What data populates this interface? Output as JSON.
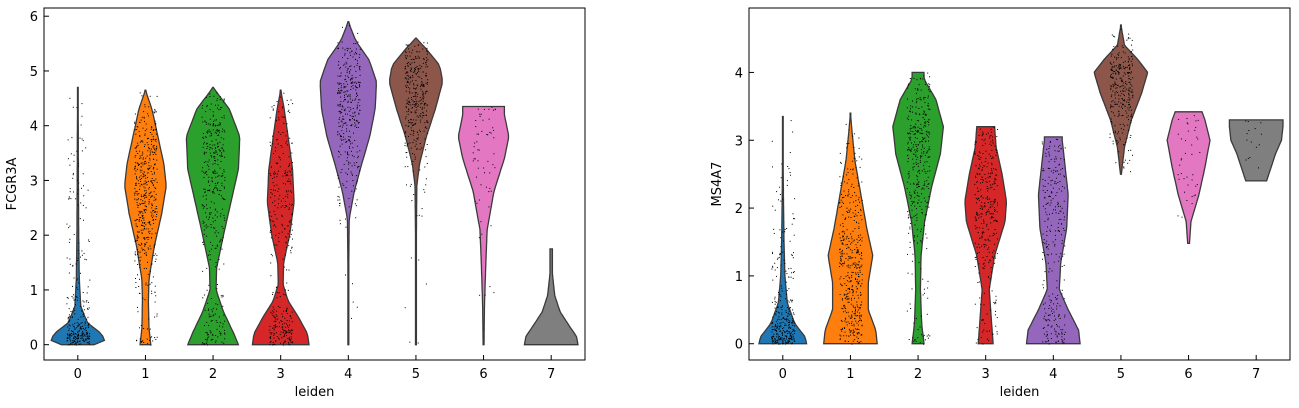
{
  "chart_data": [
    {
      "type": "violin",
      "gene": "FCGR3A",
      "xlabel": "leiden",
      "ylabel": "FCGR3A",
      "categories": [
        "0",
        "1",
        "2",
        "3",
        "4",
        "5",
        "6",
        "7"
      ],
      "colors": [
        "#1f77b4",
        "#ff7f0e",
        "#2ca02c",
        "#d62728",
        "#9467bd",
        "#8c564b",
        "#e377c2",
        "#7f7f7f"
      ],
      "ylim": [
        -0.28,
        6.15
      ],
      "yticks": [
        0,
        1,
        2,
        3,
        4,
        5,
        6
      ],
      "grid": false,
      "series": [
        {
          "cluster": "0",
          "min": 0,
          "max": 4.7,
          "width_profile": [
            [
              0,
              0.55
            ],
            [
              0.08,
              0.9
            ],
            [
              0.2,
              0.8
            ],
            [
              0.4,
              0.32
            ],
            [
              0.7,
              0.1
            ],
            [
              1.2,
              0.05
            ],
            [
              2,
              0.03
            ],
            [
              3,
              0.02
            ],
            [
              4,
              0.015
            ],
            [
              4.7,
              0
            ]
          ],
          "n_points": 300
        },
        {
          "cluster": "1",
          "min": 0,
          "max": 4.65,
          "width_profile": [
            [
              0,
              0.18
            ],
            [
              0.3,
              0.12
            ],
            [
              0.8,
              0.1
            ],
            [
              1.2,
              0.12
            ],
            [
              1.8,
              0.3
            ],
            [
              2.4,
              0.55
            ],
            [
              2.9,
              0.7
            ],
            [
              3.3,
              0.62
            ],
            [
              3.8,
              0.42
            ],
            [
              4.3,
              0.22
            ],
            [
              4.65,
              0
            ]
          ],
          "n_points": 500
        },
        {
          "cluster": "2",
          "min": 0,
          "max": 4.7,
          "width_profile": [
            [
              0,
              0.85
            ],
            [
              0.2,
              0.7
            ],
            [
              0.6,
              0.35
            ],
            [
              1.0,
              0.1
            ],
            [
              1.4,
              0.12
            ],
            [
              2.0,
              0.35
            ],
            [
              2.6,
              0.6
            ],
            [
              3.2,
              0.85
            ],
            [
              3.8,
              0.9
            ],
            [
              4.3,
              0.55
            ],
            [
              4.7,
              0
            ]
          ],
          "n_points": 400
        },
        {
          "cluster": "3",
          "min": 0,
          "max": 4.65,
          "width_profile": [
            [
              0,
              0.95
            ],
            [
              0.2,
              0.9
            ],
            [
              0.5,
              0.6
            ],
            [
              0.8,
              0.25
            ],
            [
              1.1,
              0.08
            ],
            [
              1.5,
              0.1
            ],
            [
              2.0,
              0.3
            ],
            [
              2.6,
              0.45
            ],
            [
              3.2,
              0.4
            ],
            [
              3.8,
              0.25
            ],
            [
              4.3,
              0.12
            ],
            [
              4.65,
              0
            ]
          ],
          "n_points": 350
        },
        {
          "cluster": "4",
          "min": 0,
          "max": 5.9,
          "width_profile": [
            [
              0,
              0.015
            ],
            [
              1.5,
              0.015
            ],
            [
              2.3,
              0.03
            ],
            [
              2.8,
              0.2
            ],
            [
              3.3,
              0.45
            ],
            [
              3.8,
              0.72
            ],
            [
              4.3,
              0.9
            ],
            [
              4.8,
              0.95
            ],
            [
              5.2,
              0.7
            ],
            [
              5.55,
              0.25
            ],
            [
              5.9,
              0
            ]
          ],
          "n_points": 350
        },
        {
          "cluster": "5",
          "min": 0,
          "max": 5.6,
          "width_profile": [
            [
              0,
              0.015
            ],
            [
              2.0,
              0.015
            ],
            [
              2.9,
              0.03
            ],
            [
              3.3,
              0.12
            ],
            [
              3.8,
              0.35
            ],
            [
              4.3,
              0.65
            ],
            [
              4.8,
              0.9
            ],
            [
              5.1,
              0.8
            ],
            [
              5.4,
              0.35
            ],
            [
              5.6,
              0
            ]
          ],
          "n_points": 350
        },
        {
          "cluster": "6",
          "min": 0,
          "max": 4.35,
          "width_profile": [
            [
              0,
              0.015
            ],
            [
              0.7,
              0.03
            ],
            [
              1.4,
              0.07
            ],
            [
              2.1,
              0.12
            ],
            [
              2.8,
              0.35
            ],
            [
              3.4,
              0.7
            ],
            [
              3.8,
              0.85
            ],
            [
              4.2,
              0.7
            ],
            [
              4.35,
              0.7
            ]
          ],
          "n_points": 60
        },
        {
          "cluster": "7",
          "min": 0,
          "max": 1.75,
          "width_profile": [
            [
              0,
              0.9
            ],
            [
              0.15,
              0.85
            ],
            [
              0.35,
              0.6
            ],
            [
              0.6,
              0.3
            ],
            [
              0.9,
              0.12
            ],
            [
              1.3,
              0.04
            ],
            [
              1.7,
              0.04
            ],
            [
              1.75,
              0.04
            ]
          ],
          "n_points": 0
        }
      ]
    },
    {
      "type": "violin",
      "gene": "MS4A7",
      "xlabel": "leiden",
      "ylabel": "MS4A7",
      "categories": [
        "0",
        "1",
        "2",
        "3",
        "4",
        "5",
        "6",
        "7"
      ],
      "colors": [
        "#1f77b4",
        "#ff7f0e",
        "#2ca02c",
        "#d62728",
        "#9467bd",
        "#8c564b",
        "#e377c2",
        "#7f7f7f"
      ],
      "ylim": [
        -0.24,
        4.95
      ],
      "yticks": [
        0,
        1,
        2,
        3,
        4
      ],
      "grid": false,
      "series": [
        {
          "cluster": "0",
          "min": 0,
          "max": 3.35,
          "width_profile": [
            [
              0,
              0.8
            ],
            [
              0.1,
              0.75
            ],
            [
              0.3,
              0.4
            ],
            [
              0.6,
              0.15
            ],
            [
              1.0,
              0.07
            ],
            [
              1.5,
              0.04
            ],
            [
              2.2,
              0.02
            ],
            [
              3.35,
              0
            ]
          ],
          "n_points": 320
        },
        {
          "cluster": "1",
          "min": 0,
          "max": 3.4,
          "width_profile": [
            [
              0,
              0.9
            ],
            [
              0.2,
              0.85
            ],
            [
              0.5,
              0.6
            ],
            [
              0.9,
              0.6
            ],
            [
              1.3,
              0.75
            ],
            [
              1.7,
              0.55
            ],
            [
              2.2,
              0.35
            ],
            [
              2.7,
              0.15
            ],
            [
              3.1,
              0.06
            ],
            [
              3.4,
              0
            ]
          ],
          "n_points": 450
        },
        {
          "cluster": "2",
          "min": 0,
          "max": 4.0,
          "width_profile": [
            [
              0,
              0.2
            ],
            [
              0.3,
              0.12
            ],
            [
              0.8,
              0.08
            ],
            [
              1.3,
              0.1
            ],
            [
              1.8,
              0.22
            ],
            [
              2.3,
              0.45
            ],
            [
              2.8,
              0.75
            ],
            [
              3.2,
              0.85
            ],
            [
              3.6,
              0.6
            ],
            [
              3.9,
              0.2
            ],
            [
              4.0,
              0.2
            ]
          ],
          "n_points": 380
        },
        {
          "cluster": "3",
          "min": 0,
          "max": 3.2,
          "width_profile": [
            [
              0,
              0.25
            ],
            [
              0.3,
              0.2
            ],
            [
              0.8,
              0.12
            ],
            [
              1.3,
              0.3
            ],
            [
              1.8,
              0.65
            ],
            [
              2.1,
              0.7
            ],
            [
              2.5,
              0.55
            ],
            [
              2.9,
              0.35
            ],
            [
              3.2,
              0.3
            ]
          ],
          "n_points": 330
        },
        {
          "cluster": "4",
          "min": 0,
          "max": 3.05,
          "width_profile": [
            [
              0,
              0.9
            ],
            [
              0.2,
              0.85
            ],
            [
              0.5,
              0.5
            ],
            [
              0.8,
              0.2
            ],
            [
              1.2,
              0.25
            ],
            [
              1.7,
              0.45
            ],
            [
              2.2,
              0.5
            ],
            [
              2.6,
              0.4
            ],
            [
              3.0,
              0.3
            ],
            [
              3.05,
              0.3
            ]
          ],
          "n_points": 280
        },
        {
          "cluster": "5",
          "min": 2.5,
          "max": 4.7,
          "width_profile": [
            [
              2.5,
              0.015
            ],
            [
              2.9,
              0.12
            ],
            [
              3.3,
              0.35
            ],
            [
              3.7,
              0.7
            ],
            [
              4.0,
              0.9
            ],
            [
              4.2,
              0.55
            ],
            [
              4.4,
              0.12
            ],
            [
              4.7,
              0
            ]
          ],
          "n_points": 300
        },
        {
          "cluster": "6",
          "min": 1.48,
          "max": 3.42,
          "width_profile": [
            [
              1.48,
              0.03
            ],
            [
              1.8,
              0.08
            ],
            [
              2.2,
              0.35
            ],
            [
              2.6,
              0.55
            ],
            [
              3.0,
              0.72
            ],
            [
              3.3,
              0.55
            ],
            [
              3.42,
              0.45
            ]
          ],
          "n_points": 40
        },
        {
          "cluster": "7",
          "min": 2.4,
          "max": 3.3,
          "width_profile": [
            [
              2.4,
              0.35
            ],
            [
              2.6,
              0.5
            ],
            [
              2.8,
              0.65
            ],
            [
              3.0,
              0.85
            ],
            [
              3.2,
              0.9
            ],
            [
              3.3,
              0.9
            ]
          ],
          "n_points": 15
        }
      ]
    }
  ]
}
